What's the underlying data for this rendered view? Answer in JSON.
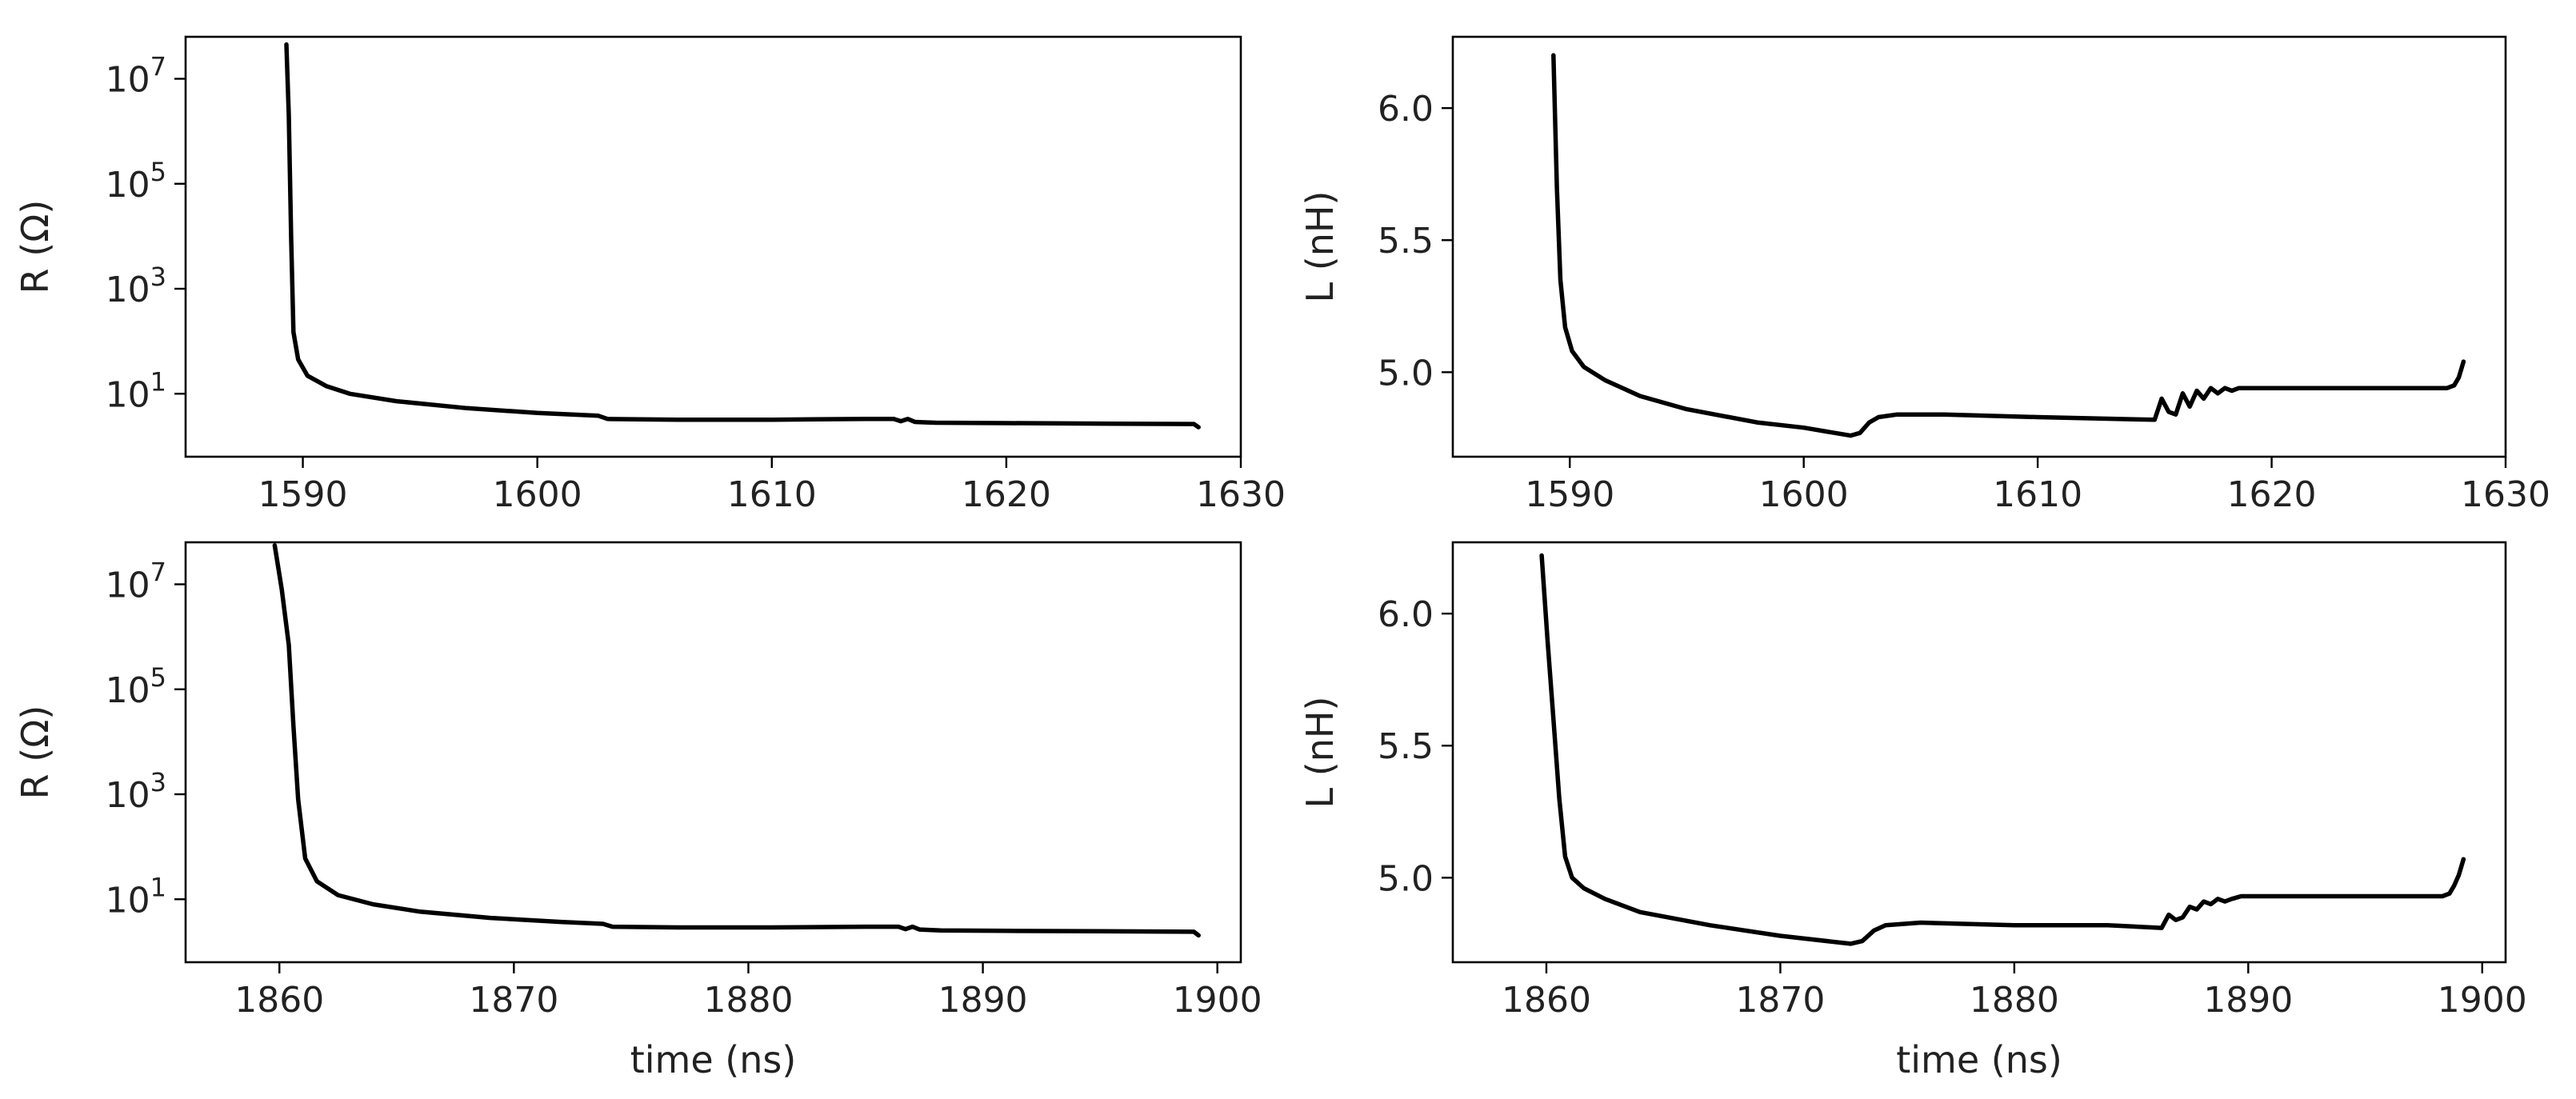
{
  "chart_data": [
    {
      "id": "top-left",
      "type": "line",
      "xlabel": "",
      "ylabel": "R (Ω)",
      "yscale": "log",
      "xlim": [
        1585,
        1630
      ],
      "ylim_log10": [
        -0.2,
        7.8
      ],
      "xticks": [
        1590,
        1600,
        1610,
        1620,
        1630
      ],
      "yticks": [
        {
          "v": 7,
          "base": "10",
          "exp": "7"
        },
        {
          "v": 5,
          "base": "10",
          "exp": "5"
        },
        {
          "v": 3,
          "base": "10",
          "exp": "3"
        },
        {
          "v": 1,
          "base": "10",
          "exp": "1"
        }
      ],
      "x": [
        1589.3,
        1589.4,
        1589.5,
        1589.6,
        1589.8,
        1590.2,
        1591,
        1592,
        1594,
        1597,
        1600,
        1602.6,
        1603,
        1606,
        1610,
        1614,
        1615.2,
        1615.5,
        1615.8,
        1616.1,
        1616.5,
        1617,
        1620,
        1624,
        1628,
        1628.2
      ],
      "y": [
        45000000,
        2000000,
        10000,
        150,
        45,
        22,
        14,
        10,
        7.2,
        5.3,
        4.3,
        3.8,
        3.3,
        3.2,
        3.2,
        3.3,
        3.3,
        3.0,
        3.3,
        2.9,
        2.85,
        2.8,
        2.75,
        2.7,
        2.65,
        2.3
      ],
      "grid": false
    },
    {
      "id": "top-right",
      "type": "line",
      "xlabel": "",
      "ylabel": "L (nH)",
      "yscale": "linear",
      "xlim": [
        1585,
        1630
      ],
      "ylim": [
        4.68,
        6.27
      ],
      "xticks": [
        1590,
        1600,
        1610,
        1620,
        1630
      ],
      "yticks": [
        {
          "v": 6.0,
          "label": "6.0"
        },
        {
          "v": 5.5,
          "label": "5.5"
        },
        {
          "v": 5.0,
          "label": "5.0"
        }
      ],
      "x": [
        1589.3,
        1589.45,
        1589.6,
        1589.8,
        1590.1,
        1590.6,
        1591.5,
        1593,
        1595,
        1598,
        1600,
        1602,
        1602.4,
        1602.8,
        1603.2,
        1604,
        1606,
        1610,
        1615,
        1615.3,
        1615.6,
        1615.9,
        1616.2,
        1616.5,
        1616.8,
        1617.1,
        1617.4,
        1617.7,
        1618,
        1618.3,
        1618.6,
        1619,
        1620,
        1622,
        1624,
        1626,
        1627.5,
        1627.8,
        1628,
        1628.2
      ],
      "y": [
        6.2,
        5.7,
        5.35,
        5.17,
        5.08,
        5.02,
        4.97,
        4.91,
        4.86,
        4.81,
        4.79,
        4.76,
        4.77,
        4.81,
        4.83,
        4.84,
        4.84,
        4.83,
        4.82,
        4.9,
        4.85,
        4.84,
        4.92,
        4.87,
        4.93,
        4.9,
        4.94,
        4.92,
        4.94,
        4.93,
        4.94,
        4.94,
        4.94,
        4.94,
        4.94,
        4.94,
        4.94,
        4.95,
        4.98,
        5.04
      ],
      "grid": false
    },
    {
      "id": "bottom-left",
      "type": "line",
      "xlabel": "time (ns)",
      "ylabel": "R (Ω)",
      "yscale": "log",
      "xlim": [
        1856,
        1901
      ],
      "ylim_log10": [
        -0.2,
        7.8
      ],
      "xticks": [
        1860,
        1870,
        1880,
        1890,
        1900
      ],
      "yticks": [
        {
          "v": 7,
          "base": "10",
          "exp": "7"
        },
        {
          "v": 5,
          "base": "10",
          "exp": "5"
        },
        {
          "v": 3,
          "base": "10",
          "exp": "3"
        },
        {
          "v": 1,
          "base": "10",
          "exp": "1"
        }
      ],
      "x": [
        1859.8,
        1860.1,
        1860.4,
        1860.6,
        1860.8,
        1861.1,
        1861.6,
        1862.5,
        1864,
        1866,
        1869,
        1872,
        1873.8,
        1874.2,
        1877,
        1881,
        1885,
        1886.4,
        1886.7,
        1887,
        1887.3,
        1887.7,
        1888.2,
        1891,
        1895,
        1899,
        1899.2
      ],
      "y": [
        55000000,
        8000000,
        700000,
        20000,
        800,
        60,
        22,
        12,
        8,
        5.8,
        4.4,
        3.7,
        3.4,
        3.0,
        2.9,
        2.9,
        3.0,
        3.0,
        2.7,
        3.0,
        2.65,
        2.6,
        2.55,
        2.5,
        2.45,
        2.4,
        2.05
      ],
      "grid": false
    },
    {
      "id": "bottom-right",
      "type": "line",
      "xlabel": "time (ns)",
      "ylabel": "L (nH)",
      "yscale": "linear",
      "xlim": [
        1856,
        1901
      ],
      "ylim": [
        4.68,
        6.27
      ],
      "xticks": [
        1860,
        1870,
        1880,
        1890,
        1900
      ],
      "yticks": [
        {
          "v": 6.0,
          "label": "6.0"
        },
        {
          "v": 5.5,
          "label": "5.5"
        },
        {
          "v": 5.0,
          "label": "5.0"
        }
      ],
      "x": [
        1859.8,
        1860.05,
        1860.3,
        1860.55,
        1860.8,
        1861.1,
        1861.6,
        1862.5,
        1864,
        1867,
        1870,
        1873,
        1873.5,
        1874,
        1874.5,
        1876,
        1880,
        1884,
        1886.3,
        1886.6,
        1886.9,
        1887.2,
        1887.5,
        1887.8,
        1888.1,
        1888.4,
        1888.7,
        1889,
        1889.3,
        1889.7,
        1891,
        1894,
        1897,
        1898.3,
        1898.6,
        1898.8,
        1899,
        1899.2
      ],
      "y": [
        6.22,
        5.9,
        5.6,
        5.3,
        5.08,
        5.0,
        4.96,
        4.92,
        4.87,
        4.82,
        4.78,
        4.75,
        4.76,
        4.8,
        4.82,
        4.83,
        4.82,
        4.82,
        4.81,
        4.86,
        4.84,
        4.85,
        4.89,
        4.88,
        4.91,
        4.9,
        4.92,
        4.91,
        4.92,
        4.93,
        4.93,
        4.93,
        4.93,
        4.93,
        4.94,
        4.97,
        5.01,
        5.07
      ],
      "grid": false
    }
  ]
}
